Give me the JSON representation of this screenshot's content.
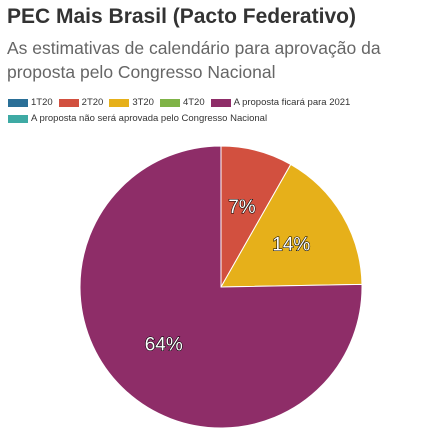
{
  "chart_data": {
    "type": "pie",
    "title": "PEC Mais Brasil (Pacto Federativo)",
    "subtitle": "As estimativas de calendário para aprovação da proposta pelo Congresso Nacional",
    "categories": [
      "1T20",
      "2T20",
      "3T20",
      "4T20",
      "A proposta ficará para 2021",
      "A proposta não será aprovada pelo Congresso Nacional"
    ],
    "values": [
      0,
      7,
      14,
      0,
      64,
      0
    ],
    "data_labels": [
      "",
      "7%",
      "14%",
      "",
      "64%",
      ""
    ],
    "colors": [
      "#2a6f97",
      "#d2503f",
      "#e6b01a",
      "#7fb347",
      "#8e2d68",
      "#3eaaa4"
    ],
    "legend_position": "top"
  }
}
